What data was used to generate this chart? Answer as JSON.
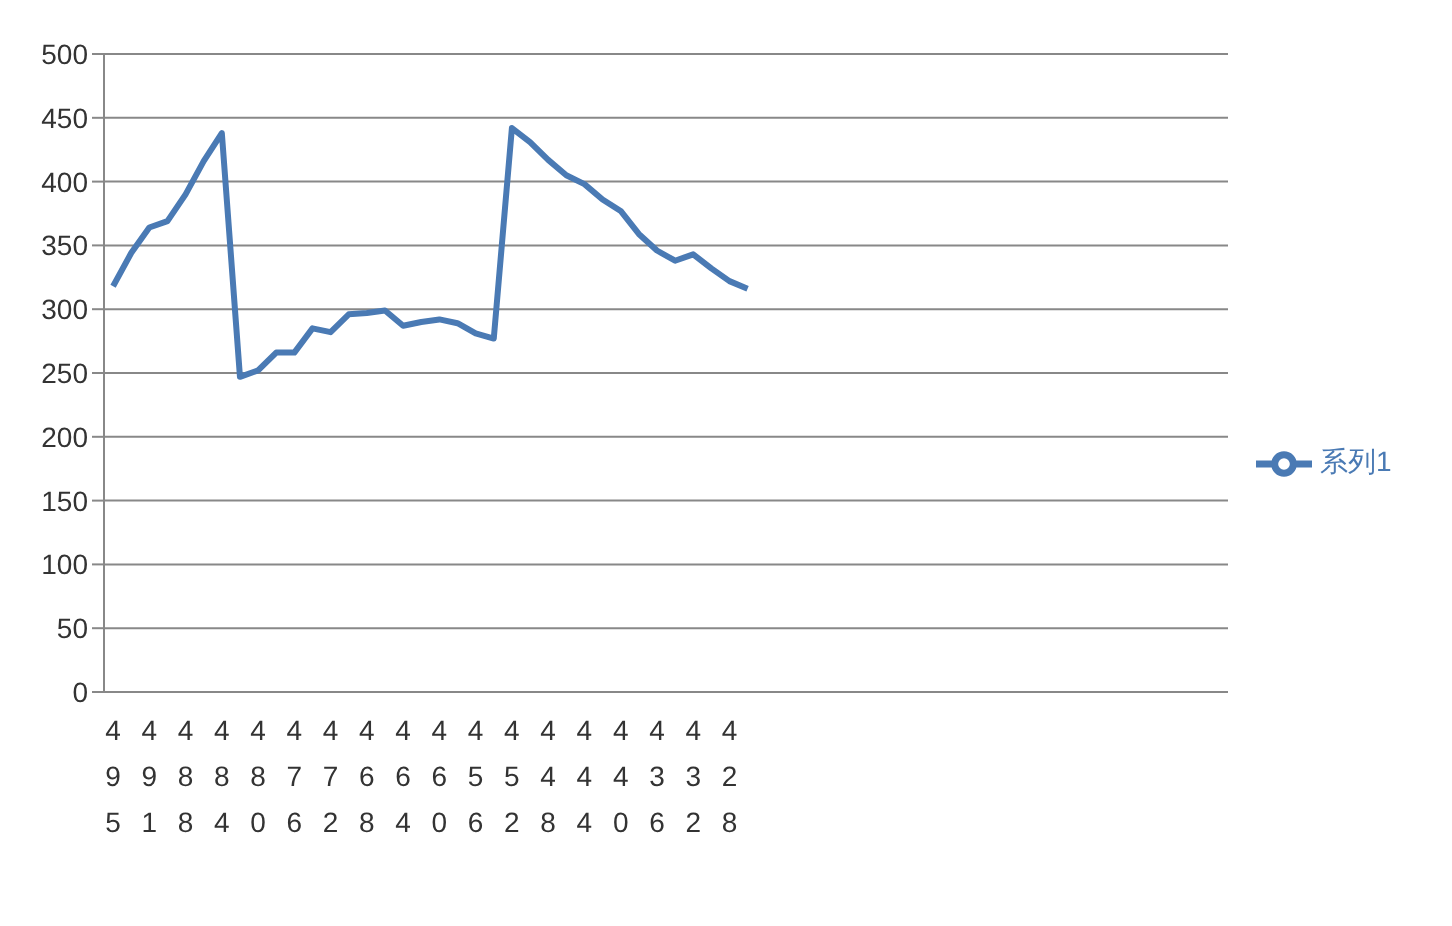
{
  "chart_data": {
    "type": "line",
    "categories": [
      "495",
      null,
      "491",
      null,
      "488",
      null,
      "484",
      null,
      "480",
      null,
      "476",
      null,
      "472",
      null,
      "468",
      null,
      "464",
      null,
      "460",
      null,
      "456",
      null,
      "452",
      null,
      "448",
      null,
      "444",
      null,
      "440",
      null,
      "436",
      null,
      "432",
      null,
      "428",
      null,
      null,
      null,
      null,
      null,
      null,
      null,
      null,
      null,
      null,
      null,
      null,
      null,
      null,
      null,
      null,
      null,
      null,
      null,
      null,
      null,
      null,
      null,
      null,
      null,
      null,
      null
    ],
    "series": [
      {
        "name": "系列1",
        "color": "#4a7ab4",
        "values": [
          318,
          344,
          364,
          369,
          390,
          416,
          438,
          247,
          252,
          266,
          266,
          285,
          282,
          296,
          297,
          299,
          287,
          290,
          292,
          289,
          281,
          277,
          442,
          431,
          417,
          405,
          398,
          386,
          377,
          359,
          346,
          338,
          343,
          332,
          322,
          316,
          null,
          null,
          null,
          null,
          null,
          null,
          null,
          null,
          null,
          null,
          null,
          null,
          null,
          null,
          null,
          null,
          null,
          null,
          null,
          null,
          null,
          null,
          null,
          null,
          null,
          null
        ]
      }
    ],
    "ylim": [
      0,
      500
    ],
    "yticks": [
      0,
      50,
      100,
      150,
      200,
      250,
      300,
      350,
      400,
      450,
      500
    ],
    "grid": "y",
    "legend": "right",
    "marker": "none",
    "line_style": "solid"
  }
}
